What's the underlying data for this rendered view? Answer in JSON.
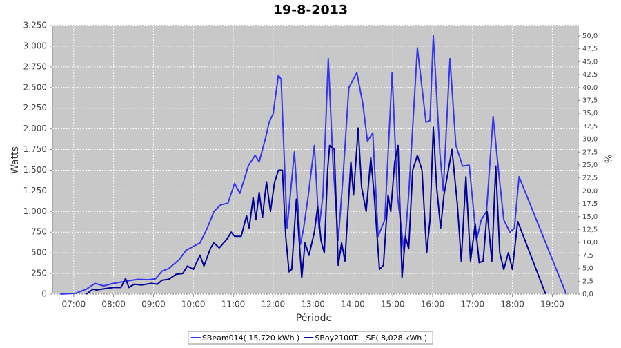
{
  "chart_data": {
    "type": "line",
    "title": "19-8-2013",
    "x_label": "Période",
    "y_label": "Watts",
    "y2_label": "%",
    "grid": true,
    "legend": "bottom",
    "background": "#c8c8c8",
    "xlim": [
      388,
      1179
    ],
    "xticks": [
      {
        "value": 420,
        "label": "07:00"
      },
      {
        "value": 480,
        "label": "08:00"
      },
      {
        "value": 540,
        "label": "09:00"
      },
      {
        "value": 600,
        "label": "10:00"
      },
      {
        "value": 660,
        "label": "11:00"
      },
      {
        "value": 720,
        "label": "12:00"
      },
      {
        "value": 780,
        "label": "13:00"
      },
      {
        "value": 840,
        "label": "14:00"
      },
      {
        "value": 900,
        "label": "15:00"
      },
      {
        "value": 960,
        "label": "16:00"
      },
      {
        "value": 1020,
        "label": "17:00"
      },
      {
        "value": 1080,
        "label": "18:00"
      },
      {
        "value": 1140,
        "label": "19:00"
      }
    ],
    "ylim": [
      0,
      3250
    ],
    "yticks": [
      0,
      250,
      500,
      750,
      {
        "value": 1000,
        "label": "1.000"
      },
      {
        "value": 1250,
        "label": "1.250"
      },
      {
        "value": 1500,
        "label": "1.500"
      },
      {
        "value": 1750,
        "label": "1.750"
      },
      {
        "value": 2000,
        "label": "2.000"
      },
      {
        "value": 2250,
        "label": "2.250"
      },
      {
        "value": 2500,
        "label": "2.500"
      },
      {
        "value": 2750,
        "label": "2.750"
      },
      {
        "value": 3000,
        "label": "3.000"
      },
      {
        "value": 3250,
        "label": "3.250"
      }
    ],
    "y2lim": [
      0,
      52
    ],
    "y2ticks": [
      {
        "value": 0,
        "label": "0,0"
      },
      {
        "value": 2.5,
        "label": "2,5"
      },
      {
        "value": 5,
        "label": "5,0"
      },
      {
        "value": 7.5,
        "label": "7,5"
      },
      {
        "value": 10,
        "label": "10,0"
      },
      {
        "value": 12.5,
        "label": "12,5"
      },
      {
        "value": 15,
        "label": "15,0"
      },
      {
        "value": 17.5,
        "label": "17,5"
      },
      {
        "value": 20,
        "label": "20,0"
      },
      {
        "value": 22.5,
        "label": "22,5"
      },
      {
        "value": 25,
        "label": "25,0"
      },
      {
        "value": 27.5,
        "label": "27,5"
      },
      {
        "value": 30,
        "label": "30,0"
      },
      {
        "value": 32.5,
        "label": "32,5"
      },
      {
        "value": 35,
        "label": "35,0"
      },
      {
        "value": 37.5,
        "label": "37,5"
      },
      {
        "value": 40,
        "label": "40,0"
      },
      {
        "value": 42.5,
        "label": "42,5"
      },
      {
        "value": 45,
        "label": "45,0"
      },
      {
        "value": 47.5,
        "label": "47,5"
      },
      {
        "value": 50,
        "label": "50,0"
      }
    ],
    "series": [
      {
        "name": "SBeam014( 15,720 kWh )",
        "color": "#3535ec",
        "x": [
          400,
          423,
          439,
          452,
          465,
          480,
          501,
          517,
          532,
          543,
          553,
          563,
          579,
          589,
          605,
          610,
          621,
          631,
          641,
          652,
          662,
          670,
          683,
          693,
          699,
          709,
          714,
          720,
          728,
          732,
          739,
          741,
          752,
          761,
          766,
          773,
          782,
          789,
          795,
          803,
          810,
          818,
          825,
          834,
          846,
          855,
          862,
          870,
          878,
          888,
          899,
          907,
          917,
          924,
          937,
          950,
          956,
          961,
          971,
          976,
          986,
          995,
          1005,
          1015,
          1026,
          1033,
          1041,
          1051,
          1059,
          1067,
          1076,
          1083,
          1090,
          1161
        ],
        "values": [
          0,
          10,
          60,
          130,
          100,
          130,
          160,
          180,
          175,
          185,
          280,
          310,
          420,
          530,
          600,
          620,
          800,
          1000,
          1080,
          1100,
          1340,
          1220,
          1560,
          1680,
          1600,
          1900,
          2080,
          2180,
          2650,
          2600,
          1200,
          800,
          1720,
          600,
          800,
          1200,
          1800,
          800,
          1200,
          2850,
          1600,
          650,
          1400,
          2500,
          2680,
          2300,
          1850,
          1950,
          700,
          900,
          2680,
          1200,
          500,
          1200,
          2980,
          2080,
          2100,
          3130,
          1700,
          1250,
          2850,
          1800,
          1550,
          1560,
          650,
          900,
          1000,
          2150,
          1500,
          900,
          750,
          800,
          1420,
          0
        ]
      },
      {
        "name": "SBoy2100TL_SE( 8,028 kWh )",
        "color": "#000099",
        "x": [
          439,
          449,
          454,
          470,
          480,
          491,
          498,
          503,
          511,
          522,
          537,
          546,
          553,
          563,
          574,
          584,
          591,
          600,
          610,
          616,
          626,
          631,
          639,
          650,
          657,
          662,
          672,
          680,
          684,
          690,
          694,
          699,
          704,
          710,
          716,
          722,
          728,
          734,
          739,
          744,
          748,
          755,
          763,
          768,
          774,
          782,
          787,
          792,
          797,
          802,
          805,
          812,
          818,
          823,
          828,
          837,
          841,
          848,
          853,
          860,
          867,
          872,
          880,
          886,
          893,
          897,
          903,
          908,
          914,
          919,
          924,
          930,
          937,
          944,
          951,
          956,
          961,
          966,
          972,
          977,
          989,
          997,
          1003,
          1010,
          1017,
          1024,
          1030,
          1036,
          1042,
          1049,
          1055,
          1061,
          1067,
          1074,
          1080,
          1088,
          1130
        ],
        "values": [
          0,
          60,
          50,
          70,
          80,
          80,
          190,
          80,
          120,
          110,
          130,
          120,
          170,
          180,
          240,
          250,
          340,
          300,
          470,
          340,
          560,
          620,
          560,
          660,
          750,
          700,
          700,
          950,
          800,
          1170,
          900,
          1230,
          930,
          1360,
          1000,
          1350,
          1500,
          1500,
          700,
          270,
          300,
          1150,
          200,
          620,
          470,
          750,
          1060,
          650,
          500,
          1500,
          1800,
          1750,
          350,
          620,
          400,
          1600,
          1200,
          2010,
          1300,
          1000,
          1650,
          1200,
          300,
          350,
          1200,
          1000,
          1600,
          1800,
          200,
          700,
          550,
          1500,
          1680,
          1500,
          500,
          900,
          2020,
          1300,
          800,
          1200,
          1750,
          1100,
          400,
          1420,
          400,
          850,
          380,
          400,
          1000,
          400,
          1550,
          500,
          300,
          500,
          300,
          880,
          0
        ]
      }
    ]
  }
}
